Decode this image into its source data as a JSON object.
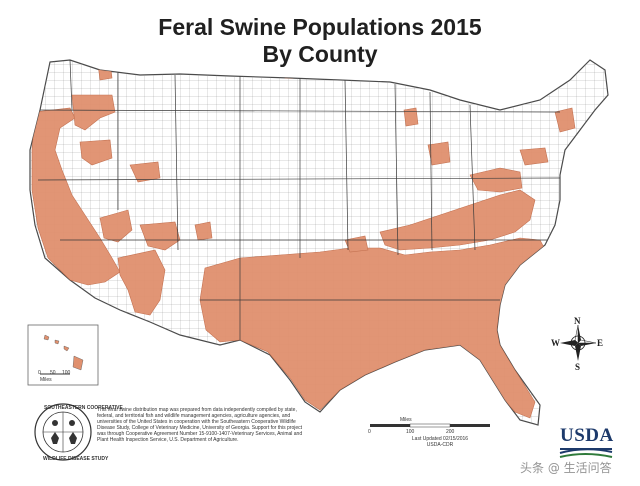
{
  "title_line1": "Feral Swine Populations 2015",
  "title_line2": "By County",
  "colors": {
    "presence": "#e0906e",
    "outline": "#4a4a4a",
    "background": "#ffffff",
    "usda_blue": "#1d3a6b"
  },
  "scale_main": {
    "unit": "Miles",
    "ticks": [
      "0",
      "100",
      "200"
    ]
  },
  "scale_inset": {
    "unit": "Miles",
    "ticks": [
      "0",
      "50",
      "100"
    ]
  },
  "compass": {
    "n": "N",
    "s": "S",
    "e": "E",
    "w": "W"
  },
  "seal": {
    "top_text": "SOUTHEASTERN COOPERATIVE",
    "bottom_text": "WILDLIFE DISEASE STUDY",
    "icon": "deer-seal-icon"
  },
  "note_text": "This feral swine distribution map was prepared from data independently compiled by state, federal, and territorial fish and wildlife management agencies, agriculture agencies, and universities of the United States in cooperation with the Southeastern Cooperative Wildlife Disease Study, College of Veterinary Medicine, University of Georgia. Support for this project was through Cooperative Agreement Number 15-9100-1407-Veterinary Services, Animal and Plant Health Inspection Service, U.S. Department of Agriculture.",
  "last_updated": "Last Updated 02/15/2016",
  "credit": "USDA-CDR",
  "usda_logo": "USDA",
  "watermark": "头条 @ 生活问答"
}
